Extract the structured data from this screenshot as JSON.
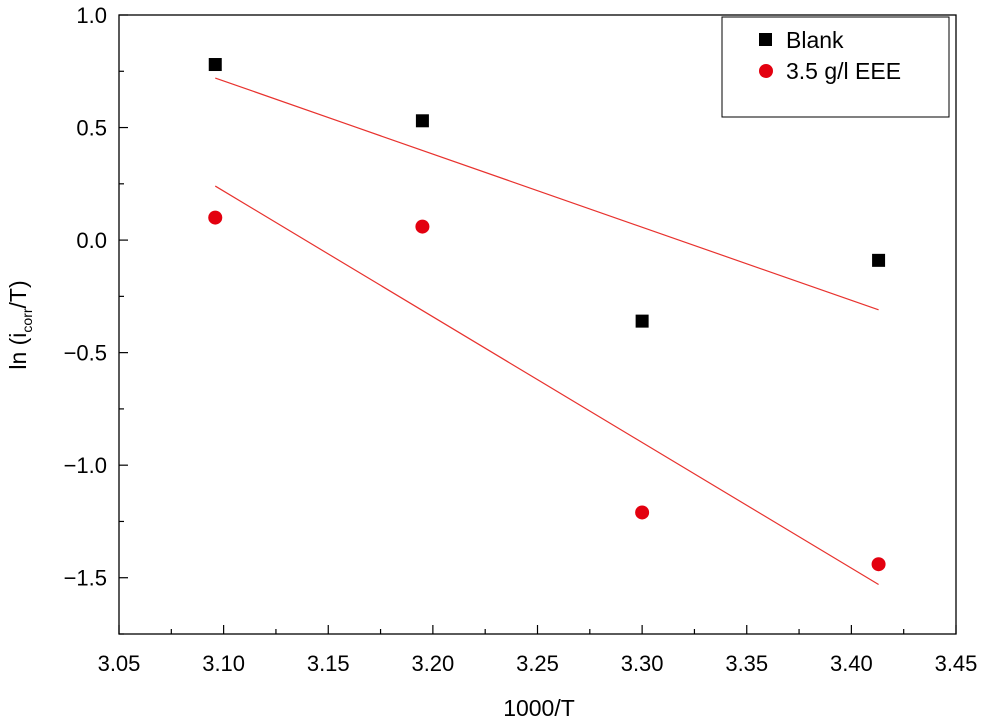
{
  "chart_data": {
    "type": "scatter",
    "xlabel": "1000/T",
    "ylabel": {
      "main": "ln (i",
      "sub": "corr",
      "tail": "/T)"
    },
    "xlim": [
      3.05,
      3.45
    ],
    "ylim": [
      -1.75,
      1.0
    ],
    "xticks": [
      3.05,
      3.1,
      3.15,
      3.2,
      3.25,
      3.3,
      3.35,
      3.4,
      3.45
    ],
    "xtick_labels": [
      "3.05",
      "3.10",
      "3.15",
      "3.20",
      "3.25",
      "3.30",
      "3.35",
      "3.40",
      "3.45"
    ],
    "yticks": [
      1.0,
      0.5,
      0.0,
      -0.5,
      -1.0,
      -1.5
    ],
    "ytick_labels": [
      "1.0",
      "0.5",
      "0.0",
      "−0.5",
      "−1.0",
      "−1.5"
    ],
    "grid": false,
    "legend_position": "top-right",
    "series": [
      {
        "name": "Blank",
        "marker": "square",
        "color": "#000000",
        "points": [
          {
            "x": 3.096,
            "y": 0.78
          },
          {
            "x": 3.195,
            "y": 0.53
          },
          {
            "x": 3.3,
            "y": -0.36
          },
          {
            "x": 3.413,
            "y": -0.09
          }
        ],
        "fit": {
          "x": [
            3.096,
            3.413
          ],
          "y": [
            0.72,
            -0.31
          ],
          "color": "#e8322e"
        }
      },
      {
        "name": "3.5 g/l EEE",
        "marker": "circle",
        "color": "#e3000f",
        "points": [
          {
            "x": 3.096,
            "y": 0.1
          },
          {
            "x": 3.195,
            "y": 0.06
          },
          {
            "x": 3.3,
            "y": -1.21
          },
          {
            "x": 3.413,
            "y": -1.44
          }
        ],
        "fit": {
          "x": [
            3.096,
            3.413
          ],
          "y": [
            0.24,
            -1.53
          ],
          "color": "#e8322e"
        }
      }
    ]
  }
}
